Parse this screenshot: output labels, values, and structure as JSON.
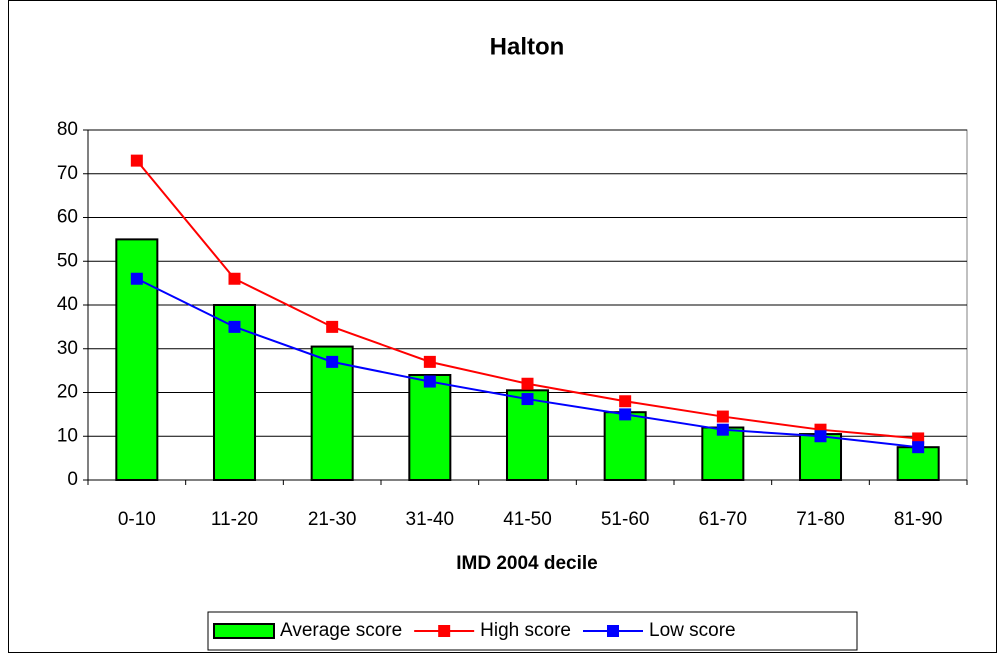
{
  "chart_data": {
    "type": "bar-line",
    "title": "Halton",
    "x_label": "IMD 2004 decile",
    "categories": [
      "0-10",
      "11-20",
      "21-30",
      "31-40",
      "41-50",
      "51-60",
      "61-70",
      "71-80",
      "81-90"
    ],
    "series": [
      {
        "name": "Average score",
        "type": "bar",
        "color": "#00ff00",
        "values": [
          55,
          40,
          30.5,
          24,
          20.5,
          15.5,
          12,
          10.5,
          7.5
        ]
      },
      {
        "name": "High score",
        "type": "line",
        "color": "#ff0000",
        "values": [
          73,
          46,
          35,
          27,
          22,
          18,
          14.5,
          11.5,
          9.5
        ]
      },
      {
        "name": "Low score",
        "type": "line",
        "color": "#0000ff",
        "values": [
          46,
          35,
          27,
          22.5,
          18.5,
          15,
          11.5,
          10,
          7.5
        ]
      }
    ],
    "ylim": [
      0,
      80
    ],
    "yticks": [
      0,
      10,
      20,
      30,
      40,
      50,
      60,
      70,
      80
    ],
    "grid": true,
    "legend": "bottom"
  }
}
